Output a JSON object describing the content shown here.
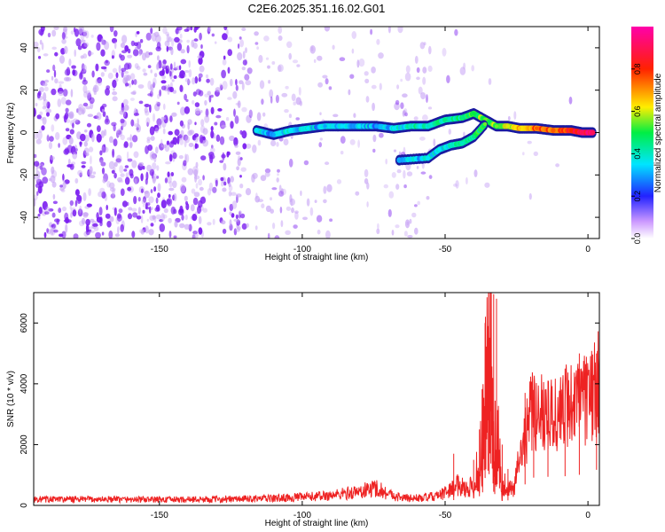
{
  "figure": {
    "title": "C2E6.2025.351.16.02.G01",
    "colors": {
      "snr_line": "#ee2222",
      "speckle_base": "#7a1cf0",
      "axis": "#000000"
    }
  },
  "chart_data": [
    {
      "type": "heatmap",
      "xlabel": "Height of straight line (km)",
      "ylabel": "Frequency (Hz)",
      "xlim": [
        -194,
        4
      ],
      "ylim": [
        -50,
        50
      ],
      "xticks": [
        -150,
        -100,
        -50,
        0
      ],
      "yticks": [
        -40,
        -20,
        0,
        20,
        40
      ],
      "colorbar": {
        "label": "Normalized spectral amplitude",
        "range": [
          0,
          1
        ],
        "ticks": [
          0.0,
          0.2,
          0.4,
          0.6,
          0.8
        ],
        "tick_labels": [
          "0.0",
          "0.2",
          "0.4",
          "0.6",
          "0.8"
        ],
        "colormap": [
          "#ffffff",
          "#cc99ff",
          "#7a1cf0",
          "#2222ff",
          "#00e5ff",
          "#00ee44",
          "#ffee00",
          "#ff2200",
          "#ff00aa"
        ]
      },
      "upper_track": [
        {
          "x": -116,
          "y": 1,
          "a": 0.35
        },
        {
          "x": -110,
          "y": -1,
          "a": 0.3
        },
        {
          "x": -104,
          "y": 1,
          "a": 0.35
        },
        {
          "x": -98,
          "y": 2,
          "a": 0.35
        },
        {
          "x": -92,
          "y": 3,
          "a": 0.3
        },
        {
          "x": -86,
          "y": 3,
          "a": 0.35
        },
        {
          "x": -80,
          "y": 3,
          "a": 0.35
        },
        {
          "x": -74,
          "y": 3,
          "a": 0.3
        },
        {
          "x": -68,
          "y": 2,
          "a": 0.35
        },
        {
          "x": -62,
          "y": 3,
          "a": 0.4
        },
        {
          "x": -56,
          "y": 3,
          "a": 0.4
        },
        {
          "x": -50,
          "y": 6,
          "a": 0.45
        },
        {
          "x": -44,
          "y": 7,
          "a": 0.45
        },
        {
          "x": -40,
          "y": 9,
          "a": 0.5
        },
        {
          "x": -36,
          "y": 6,
          "a": 0.55
        },
        {
          "x": -32,
          "y": 3,
          "a": 0.55
        },
        {
          "x": -28,
          "y": 3,
          "a": 0.6
        },
        {
          "x": -24,
          "y": 2,
          "a": 0.65
        },
        {
          "x": -18,
          "y": 2,
          "a": 0.75
        },
        {
          "x": -12,
          "y": 1,
          "a": 0.75
        },
        {
          "x": -6,
          "y": 1,
          "a": 0.8
        },
        {
          "x": -2,
          "y": 0,
          "a": 0.9
        },
        {
          "x": 2,
          "y": 0,
          "a": 0.9
        }
      ],
      "lower_track": [
        {
          "x": -66,
          "y": -13,
          "a": 0.3
        },
        {
          "x": -56,
          "y": -12,
          "a": 0.35
        },
        {
          "x": -52,
          "y": -8,
          "a": 0.35
        },
        {
          "x": -48,
          "y": -6,
          "a": 0.4
        },
        {
          "x": -44,
          "y": -5,
          "a": 0.4
        },
        {
          "x": -40,
          "y": -2,
          "a": 0.45
        },
        {
          "x": -36,
          "y": 4,
          "a": 0.55
        }
      ]
    },
    {
      "type": "line",
      "xlabel": "Height of straight line (km)",
      "ylabel": "SNR (10 * v/v)",
      "xlim": [
        -194,
        4
      ],
      "ylim": [
        0,
        7000
      ],
      "xticks": [
        -150,
        -100,
        -50,
        0
      ],
      "yticks": [
        0,
        2000,
        4000,
        6000
      ],
      "series": [
        {
          "envelope": [
            {
              "x": -194,
              "y": 200
            },
            {
              "x": -170,
              "y": 200
            },
            {
              "x": -150,
              "y": 190
            },
            {
              "x": -130,
              "y": 200
            },
            {
              "x": -110,
              "y": 230
            },
            {
              "x": -100,
              "y": 270
            },
            {
              "x": -90,
              "y": 330
            },
            {
              "x": -80,
              "y": 450
            },
            {
              "x": -74,
              "y": 580
            },
            {
              "x": -70,
              "y": 380
            },
            {
              "x": -65,
              "y": 250
            },
            {
              "x": -58,
              "y": 240
            },
            {
              "x": -52,
              "y": 320
            },
            {
              "x": -48,
              "y": 520
            },
            {
              "x": -45,
              "y": 700
            },
            {
              "x": -42,
              "y": 520
            },
            {
              "x": -38,
              "y": 1000
            },
            {
              "x": -36,
              "y": 3000
            },
            {
              "x": -34,
              "y": 4600
            },
            {
              "x": -33,
              "y": 1500
            },
            {
              "x": -32,
              "y": 2200
            },
            {
              "x": -30,
              "y": 500
            },
            {
              "x": -26,
              "y": 600
            },
            {
              "x": -24,
              "y": 1600
            },
            {
              "x": -20,
              "y": 3000
            },
            {
              "x": -15,
              "y": 3200
            },
            {
              "x": -10,
              "y": 2900
            },
            {
              "x": -6,
              "y": 3500
            },
            {
              "x": -2,
              "y": 3300
            },
            {
              "x": 2,
              "y": 3800
            },
            {
              "x": 4,
              "y": 4000
            }
          ],
          "peaks": [
            {
              "x": -36,
              "y": 6000
            },
            {
              "x": -35,
              "y": 5900
            },
            {
              "x": -34,
              "y": 5800
            },
            {
              "x": -33,
              "y": 6950
            },
            {
              "x": -32,
              "y": 6800
            },
            {
              "x": -37,
              "y": 3800
            },
            {
              "x": -38,
              "y": 2500
            },
            {
              "x": -40,
              "y": 1500
            },
            {
              "x": -47,
              "y": 1700
            },
            {
              "x": -14,
              "y": 4100
            },
            {
              "x": -8,
              "y": 4500
            },
            {
              "x": -3,
              "y": 5000
            },
            {
              "x": 3,
              "y": 5000
            },
            {
              "x": -19,
              "y": 3800
            },
            {
              "x": -22,
              "y": 3700
            },
            {
              "x": -30,
              "y": 2000
            },
            {
              "x": -28,
              "y": 1200
            }
          ]
        }
      ]
    }
  ]
}
